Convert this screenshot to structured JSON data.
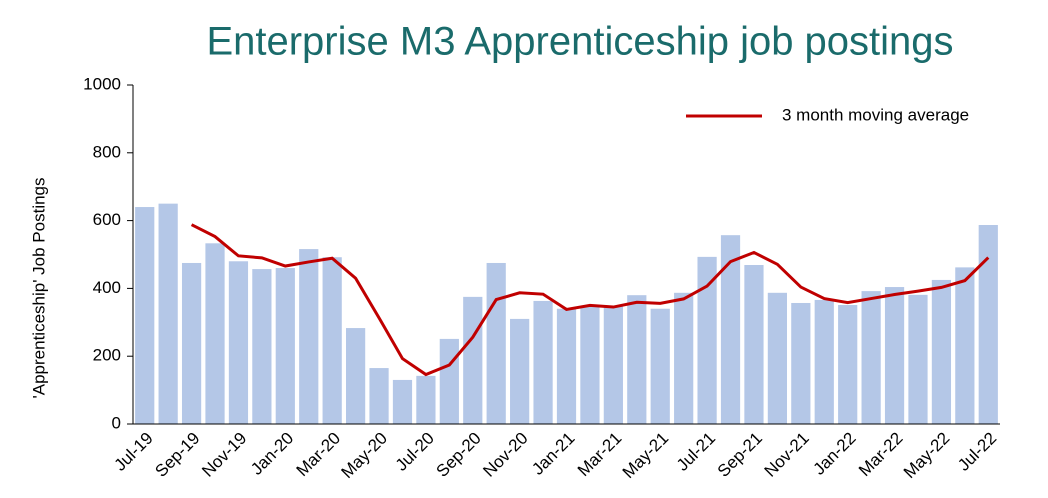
{
  "chart_data": {
    "type": "bar_line",
    "title": "Enterprise M3 Apprenticeship job postings",
    "y_label": "'Apprenticeship' Job Postings",
    "categories": [
      "Jul-19",
      null,
      "Sep-19",
      null,
      "Nov-19",
      null,
      "Jan-20",
      null,
      "Mar-20",
      null,
      "May-20",
      null,
      "Jul-20",
      null,
      "Sep-20",
      null,
      "Nov-20",
      null,
      "Jan-21",
      null,
      "Mar-21",
      null,
      "May-21",
      null,
      "Jul-21",
      null,
      "Sep-21",
      null,
      "Nov-21",
      null,
      "Jan-22",
      null,
      "Mar-22",
      null,
      "May-22",
      null,
      "Jul-22"
    ],
    "series": [
      {
        "name": null,
        "kind": "bar",
        "color": "#b4c7e7",
        "values": [
          640,
          650,
          475,
          533,
          480,
          457,
          460,
          516,
          492,
          283,
          165,
          130,
          142,
          251,
          375,
          475,
          310,
          363,
          340,
          348,
          348,
          380,
          340,
          387,
          493,
          557,
          469,
          387,
          357,
          366,
          351,
          392,
          404,
          381,
          425,
          462,
          587
        ]
      },
      {
        "name": "3 month moving average",
        "kind": "line",
        "color": "#c00000",
        "values": [
          null,
          null,
          588,
          553,
          496,
          490,
          466,
          478,
          489,
          430,
          313,
          193,
          146,
          174,
          256,
          367,
          387,
          383,
          338,
          350,
          345,
          359,
          356,
          369,
          407,
          479,
          506,
          471,
          404,
          370,
          358,
          370,
          382,
          392,
          403,
          423,
          491
        ]
      }
    ],
    "ylim": [
      0,
      1000
    ],
    "yticks": [
      0,
      200,
      400,
      600,
      800,
      1000
    ],
    "legend": "top-right"
  }
}
